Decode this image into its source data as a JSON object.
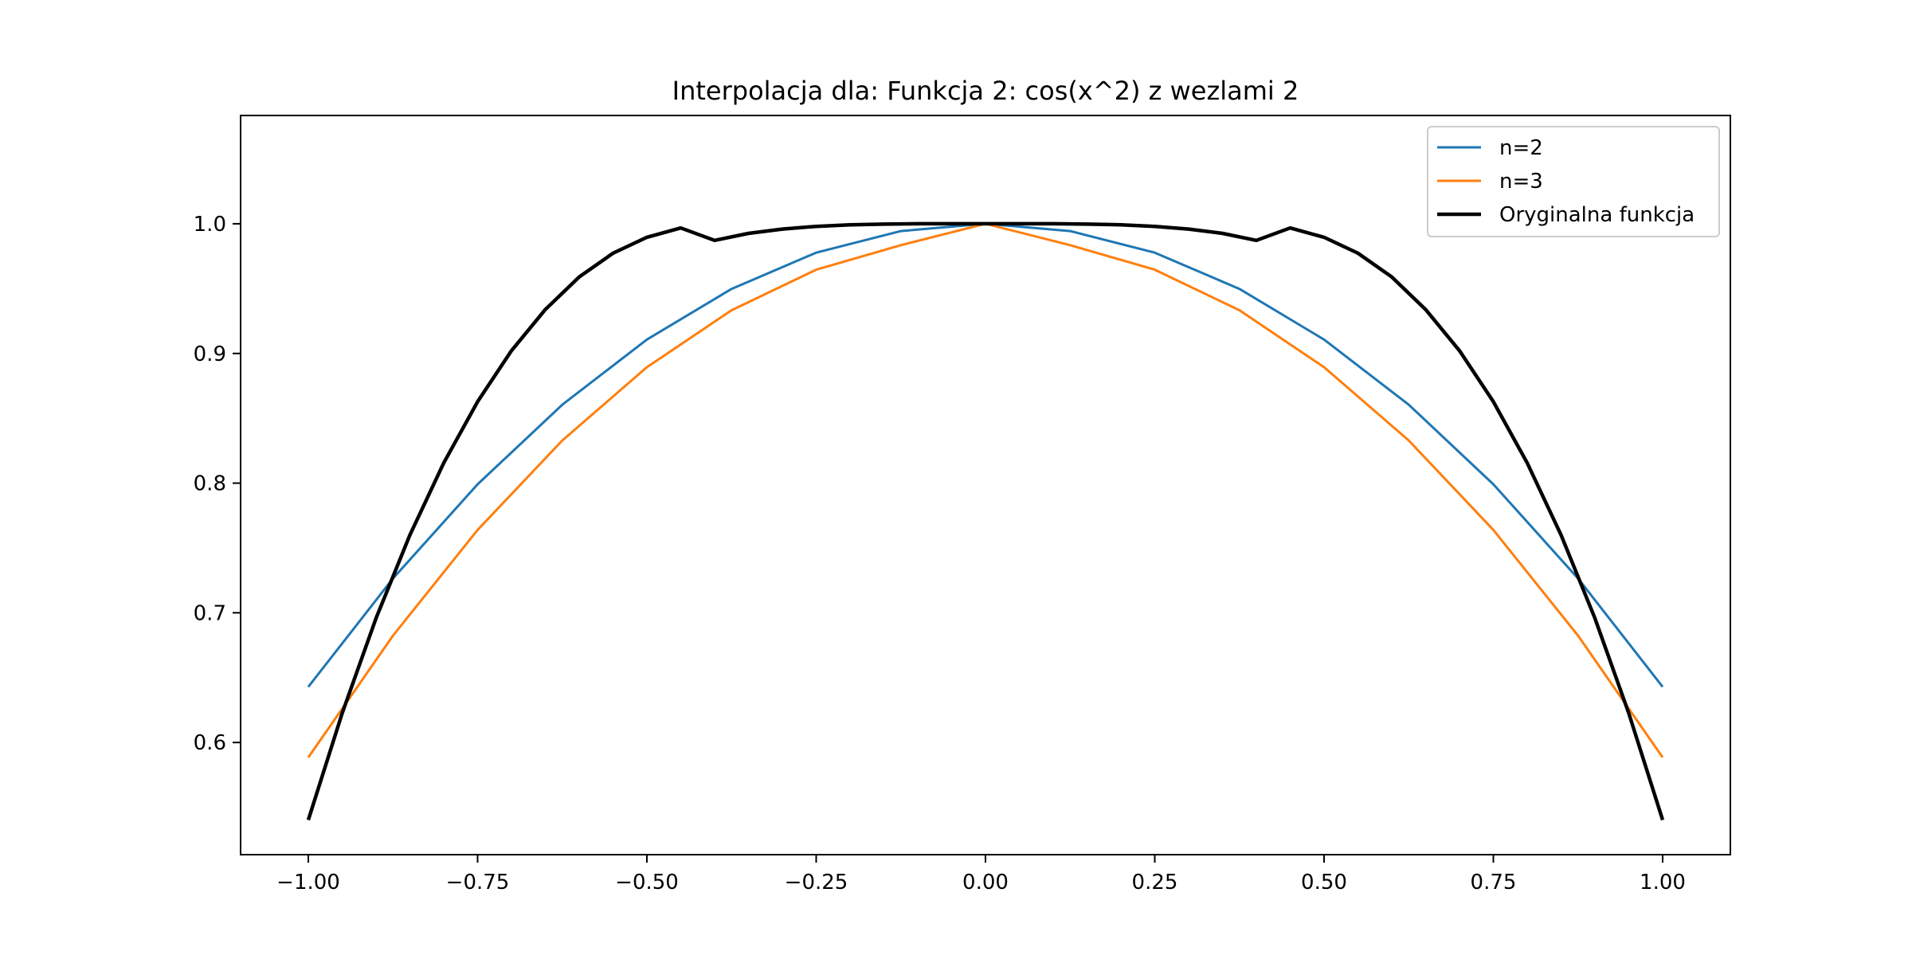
{
  "colors": {
    "n2": "#1f77b4",
    "n3": "#ff7f0e",
    "original": "#000000",
    "axes": "#000000",
    "legend_border": "#cccccc"
  },
  "chart_data": {
    "type": "line",
    "title": "Interpolacja dla: Funkcja 2: cos(x^2) z wezlami 2",
    "xlabel": "",
    "ylabel": "",
    "xlim": [
      -1.1,
      1.1
    ],
    "ylim": [
      0.5135,
      1.0835
    ],
    "xticks": [
      -1.0,
      -0.75,
      -0.5,
      -0.25,
      0.0,
      0.25,
      0.5,
      0.75,
      1.0
    ],
    "xtick_labels": [
      "−1.00",
      "−0.75",
      "−0.50",
      "−0.25",
      "0.00",
      "0.25",
      "0.50",
      "0.75",
      "1.00"
    ],
    "yticks": [
      0.6,
      0.7,
      0.8,
      0.9,
      1.0
    ],
    "ytick_labels": [
      "0.6",
      "0.7",
      "0.8",
      "0.9",
      "1.0"
    ],
    "grid": false,
    "legend_position": "top-right",
    "series": [
      {
        "name": "n=2",
        "color": "#1f77b4",
        "line_width": 2,
        "x": [
          -1.0,
          -0.875,
          -0.75,
          -0.625,
          -0.5,
          -0.375,
          -0.25,
          -0.125,
          0.0,
          0.125,
          0.25,
          0.375,
          0.5,
          0.625,
          0.75,
          0.875,
          1.0
        ],
        "y": [
          0.6429,
          0.7265,
          0.7991,
          0.8605,
          0.9107,
          0.9498,
          0.9777,
          0.9944,
          1.0,
          0.9944,
          0.9777,
          0.9498,
          0.9107,
          0.8605,
          0.7991,
          0.7265,
          0.6429
        ]
      },
      {
        "name": "n=3",
        "color": "#ff7f0e",
        "line_width": 2,
        "x": [
          -1.0,
          -0.875,
          -0.75,
          -0.625,
          -0.5,
          -0.375,
          -0.25,
          -0.125,
          0.0,
          0.125,
          0.25,
          0.375,
          0.5,
          0.625,
          0.75,
          0.875,
          1.0
        ],
        "y": [
          0.5885,
          0.6824,
          0.7639,
          0.8329,
          0.8894,
          0.9333,
          0.9646,
          0.9835,
          1.0,
          0.9835,
          0.9646,
          0.9333,
          0.8894,
          0.8329,
          0.7639,
          0.6824,
          0.5885
        ]
      },
      {
        "name": "Oryginalna funkcja",
        "color": "#000000",
        "line_width": 3,
        "x": [
          -1.0,
          -0.95,
          -0.9,
          -0.85,
          -0.8,
          -0.75,
          -0.7,
          -0.65,
          -0.6,
          -0.55,
          -0.5,
          -0.45,
          -0.4,
          -0.35,
          -0.3,
          -0.25,
          -0.2,
          -0.15,
          -0.1,
          -0.05,
          0.0,
          0.05,
          0.1,
          0.15,
          0.2,
          0.25,
          0.3,
          0.35,
          0.4,
          0.45,
          0.5,
          0.55,
          0.6,
          0.65,
          0.7,
          0.75,
          0.8,
          0.85,
          0.9,
          0.95,
          1.0
        ],
        "y": [
          0.5403,
          0.6225,
          0.6958,
          0.76,
          0.8156,
          0.8628,
          0.9021,
          0.9339,
          0.959,
          0.9773,
          0.9896,
          0.9968,
          0.9872,
          0.9926,
          0.9959,
          0.998,
          0.9992,
          0.9997,
          1.0,
          1.0,
          1.0,
          1.0,
          1.0,
          0.9997,
          0.9992,
          0.998,
          0.9959,
          0.9926,
          0.9872,
          0.9968,
          0.9896,
          0.9773,
          0.959,
          0.9339,
          0.9021,
          0.8628,
          0.8156,
          0.76,
          0.6958,
          0.6225,
          0.5403
        ]
      }
    ]
  }
}
